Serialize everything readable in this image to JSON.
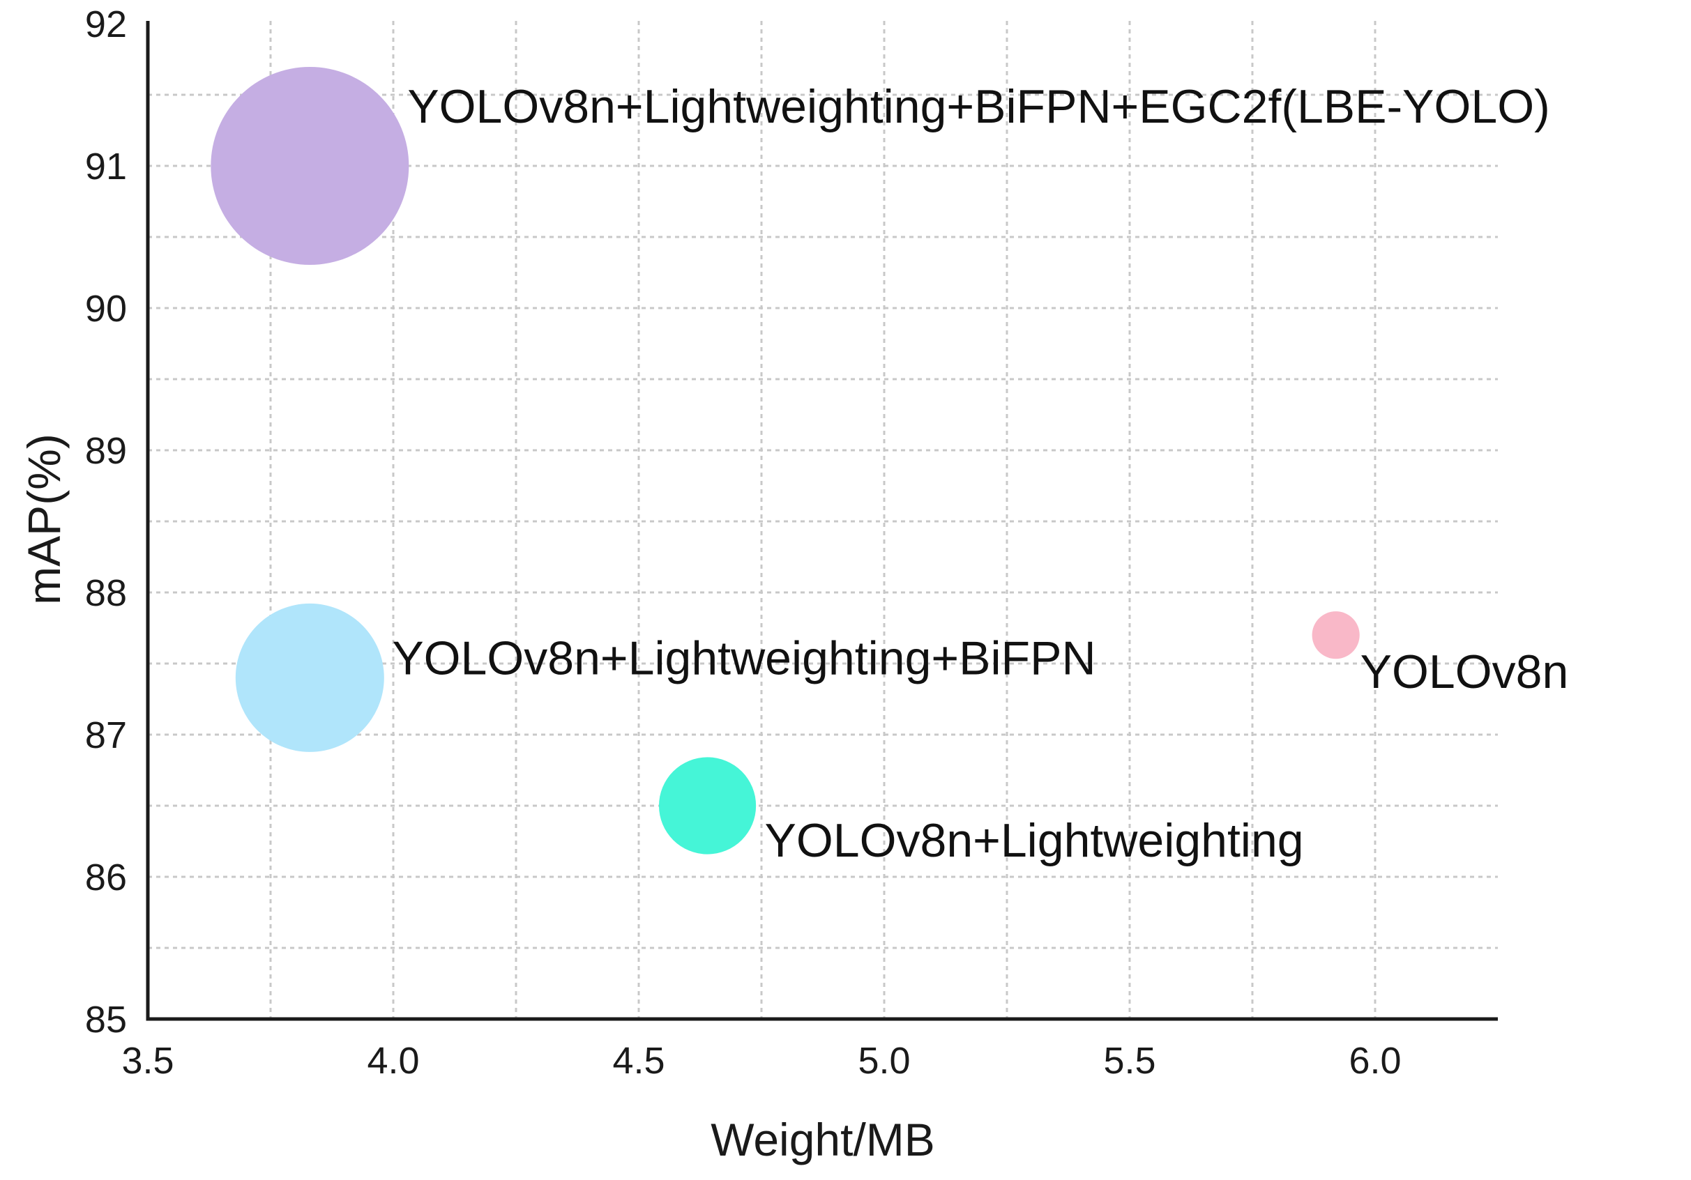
{
  "chart_data": {
    "type": "scatter",
    "subtype": "bubble",
    "xlabel": "Weight/MB",
    "ylabel": "mAP(%)",
    "xlim": [
      3.5,
      6.25
    ],
    "ylim": [
      85,
      92
    ],
    "x_ticks": [
      "3.5",
      "4.0",
      "4.5",
      "5.0",
      "5.5",
      "6.0"
    ],
    "y_ticks": [
      "85",
      "86",
      "87",
      "88",
      "89",
      "90",
      "91",
      "92"
    ],
    "grid": "dashed",
    "points": [
      {
        "label": "YOLOv8n+Lightweighting+BiFPN+EGC2f(LBE-YOLO)",
        "x": 3.83,
        "y": 91.0,
        "size": 1.0,
        "color": "#c5aee3"
      },
      {
        "label": "YOLOv8n+Lightweighting+BiFPN",
        "x": 3.83,
        "y": 87.4,
        "size": 0.75,
        "color": "#b0e5fb"
      },
      {
        "label": "YOLOv8n",
        "x": 5.92,
        "y": 87.7,
        "size": 0.24,
        "color": "#f9b8c8"
      },
      {
        "label": "YOLOv8n+Lightweighting",
        "x": 4.64,
        "y": 86.5,
        "size": 0.49,
        "color": "#45f5d7"
      }
    ]
  }
}
